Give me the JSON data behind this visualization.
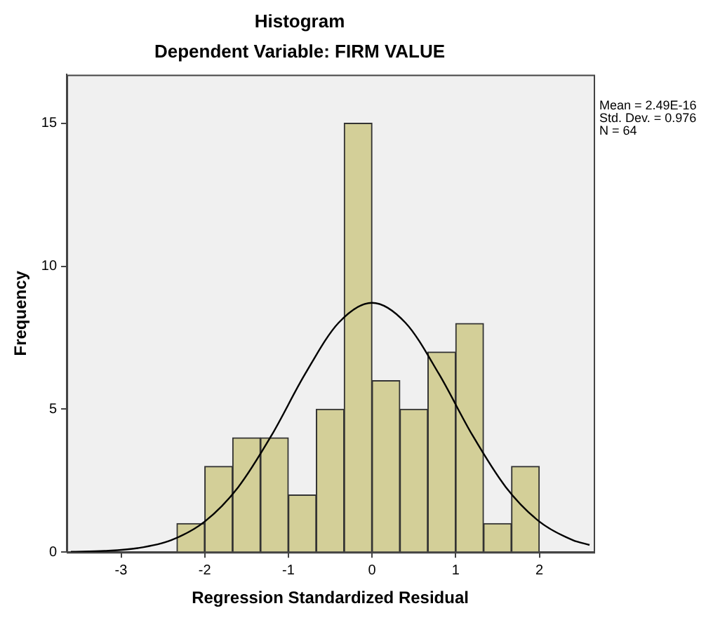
{
  "chart_data": {
    "type": "histogram",
    "title": "Histogram",
    "subtitle": "Dependent Variable: FIRM VALUE",
    "xlabel": "Regression Standardized Residual",
    "ylabel": "Frequency",
    "annotations": [
      "Mean = 2.49E-16",
      "Std. Dev. = 0.976",
      "N = 64"
    ],
    "bins": [
      -2.333,
      -2,
      -1.667,
      -1.333,
      -1,
      -0.667,
      -0.333,
      0,
      0.333,
      0.667,
      1,
      1.333,
      1.667,
      2
    ],
    "values": [
      1,
      3,
      4,
      4,
      2,
      5,
      15,
      6,
      5,
      7,
      8,
      1,
      3
    ],
    "color": "#d3cf98",
    "series": [
      {
        "type": "line",
        "color": "#000000",
        "x": [
          -3.6,
          -3.2,
          -2.8,
          -2.4,
          -2,
          -1.6,
          -1.2,
          -0.8,
          -0.4,
          0,
          0.4,
          0.8,
          1.2,
          1.6,
          2,
          2.4,
          2.6
        ],
        "values": [
          0.01,
          0.04,
          0.14,
          0.42,
          1.07,
          2.27,
          4.09,
          6.23,
          8.02,
          8.72,
          8.02,
          6.23,
          4.09,
          2.27,
          1.07,
          0.42,
          0.25
        ]
      }
    ],
    "xlim": [
      -3.65,
      2.65
    ],
    "xticks": [
      -3,
      -2,
      -1,
      0,
      1,
      2
    ],
    "ylim": [
      0,
      16.7
    ],
    "yticks": [
      0,
      5,
      10,
      15
    ],
    "grid": false,
    "legend": false,
    "marker": "none"
  }
}
